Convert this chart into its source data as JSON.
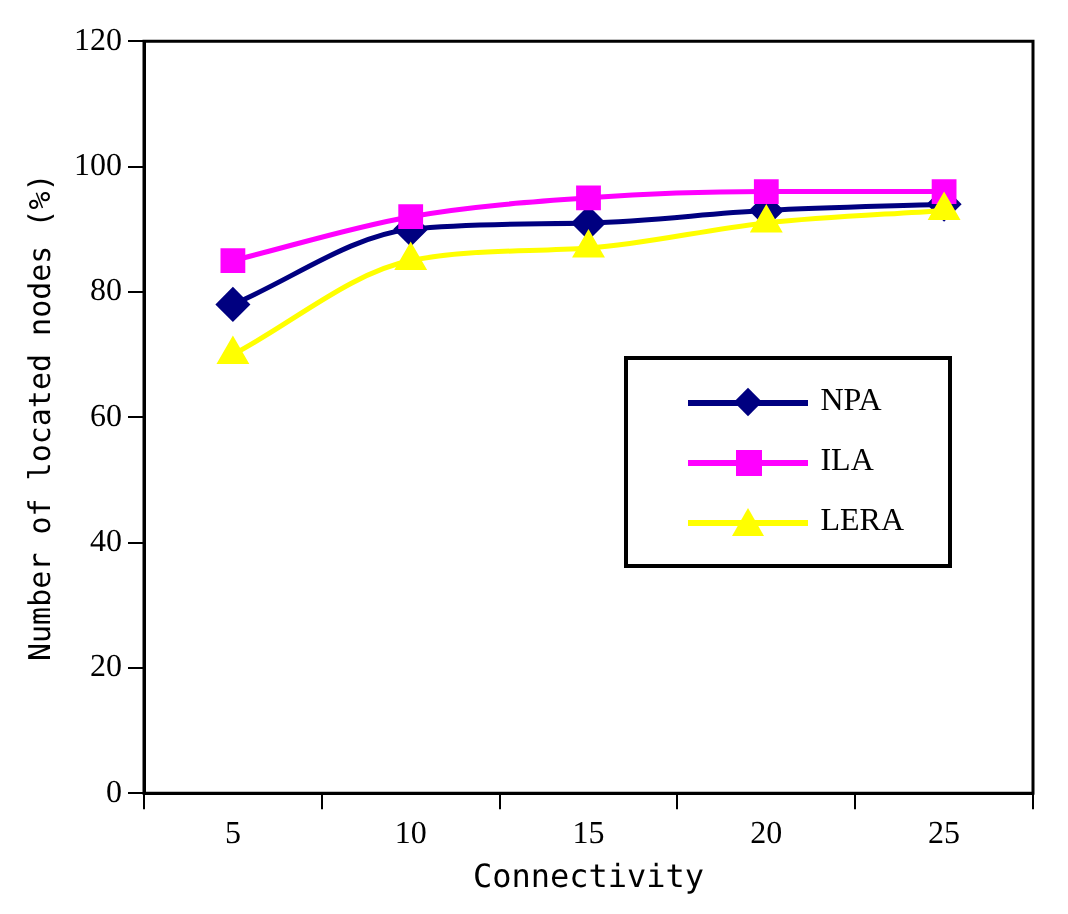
{
  "chart_data": {
    "type": "line",
    "xlabel": "Connectivity",
    "ylabel": "Number of located nodes (%)",
    "categories": [
      "5",
      "10",
      "15",
      "20",
      "25"
    ],
    "series": [
      {
        "name": "NPA",
        "color": "#000080",
        "marker": "diamond",
        "values": [
          78,
          90,
          91,
          93,
          94
        ]
      },
      {
        "name": "ILA",
        "color": "#ff00ff",
        "marker": "square",
        "values": [
          85,
          92,
          95,
          96,
          96
        ]
      },
      {
        "name": "LERA",
        "color": "#ffff00",
        "marker": "triangle",
        "values": [
          70,
          85,
          87,
          91,
          93
        ]
      }
    ],
    "ylim": [
      0,
      120
    ],
    "yticks": [
      0,
      20,
      40,
      60,
      80,
      100,
      120
    ],
    "grid": false,
    "legend": "right"
  }
}
